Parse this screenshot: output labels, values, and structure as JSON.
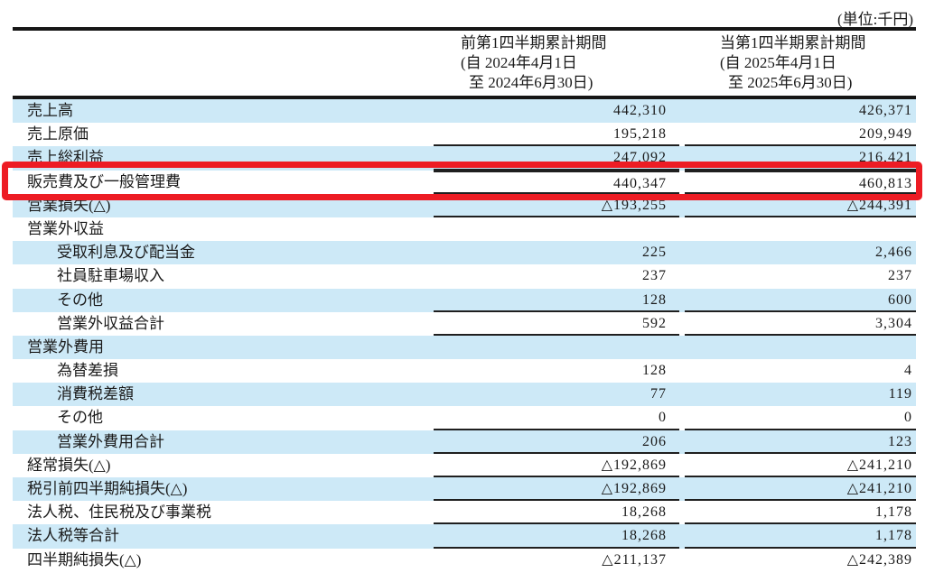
{
  "unit_label": "(単位:千円)",
  "table": {
    "columns": [
      {
        "title": "前第1四半期累計期間",
        "period_from": "(自 2024年4月1日",
        "period_to": "至 2024年6月30日)"
      },
      {
        "title": "当第1四半期累計期間",
        "period_from": "(自 2025年4月1日",
        "period_to": "至 2025年6月30日)"
      }
    ],
    "rows": [
      {
        "label": "売上高",
        "v1": "442,310",
        "v2": "426,371"
      },
      {
        "label": "売上原価",
        "v1": "195,218",
        "v2": "209,949"
      },
      {
        "label": "売上総利益",
        "v1": "247,092",
        "v2": "216,421"
      },
      {
        "label": "販売費及び一般管理費",
        "v1": "440,347",
        "v2": "460,813"
      },
      {
        "label": "営業損失(△)",
        "v1": "△193,255",
        "v2": "△244,391"
      },
      {
        "label": "営業外収益",
        "v1": "",
        "v2": ""
      },
      {
        "label": "受取利息及び配当金",
        "v1": "225",
        "v2": "2,466"
      },
      {
        "label": "社員駐車場収入",
        "v1": "237",
        "v2": "237"
      },
      {
        "label": "その他",
        "v1": "128",
        "v2": "600"
      },
      {
        "label": "営業外収益合計",
        "v1": "592",
        "v2": "3,304"
      },
      {
        "label": "営業外費用",
        "v1": "",
        "v2": ""
      },
      {
        "label": "為替差損",
        "v1": "128",
        "v2": "4"
      },
      {
        "label": "消費税差額",
        "v1": "77",
        "v2": "119"
      },
      {
        "label": "その他",
        "v1": "0",
        "v2": "0"
      },
      {
        "label": "営業外費用合計",
        "v1": "206",
        "v2": "123"
      },
      {
        "label": "経常損失(△)",
        "v1": "△192,869",
        "v2": "△241,210"
      },
      {
        "label": "税引前四半期純損失(△)",
        "v1": "△192,869",
        "v2": "△241,210"
      },
      {
        "label": "法人税、住民税及び事業税",
        "v1": "18,268",
        "v2": "1,178"
      },
      {
        "label": "法人税等合計",
        "v1": "18,268",
        "v2": "1,178"
      },
      {
        "label": "四半期純損失(△)",
        "v1": "△211,137",
        "v2": "△242,389"
      }
    ]
  },
  "highlight": {
    "row_label": "販売費及び一般管理費",
    "color": "#ed1c24"
  },
  "colors": {
    "stripe_blue": "#cde9f7",
    "rule_black": "#1f1f1f",
    "text": "#1a1a1a",
    "annotation_red": "#ed1c24"
  }
}
